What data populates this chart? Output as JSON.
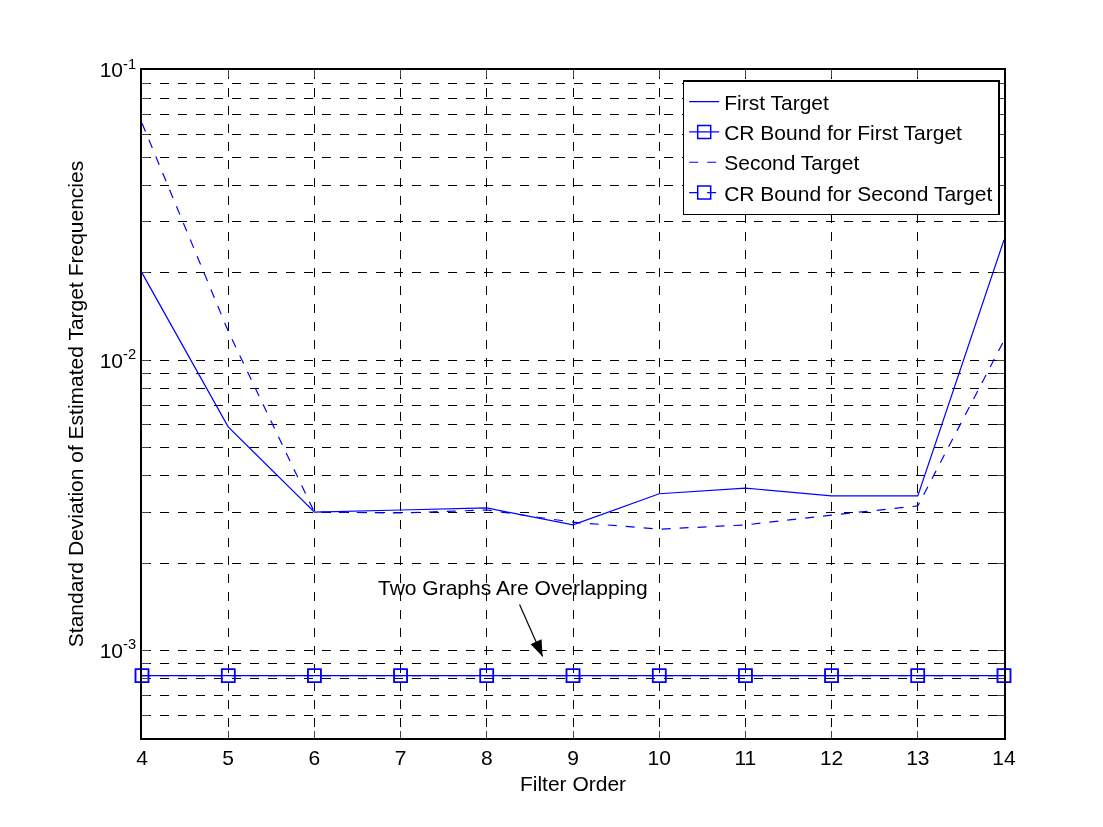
{
  "chart_data": {
    "type": "line",
    "xlabel": "Filter Order",
    "ylabel": "Standard Deviation of Estimated Target Frequencies",
    "x": [
      4,
      5,
      6,
      7,
      8,
      9,
      10,
      11,
      12,
      13,
      14
    ],
    "series": [
      {
        "name": "First Target",
        "color": "#0000ff",
        "line_style": "solid",
        "marker": "none",
        "values": [
          0.02,
          0.0059,
          0.003,
          0.00305,
          0.0031,
          0.00271,
          0.00347,
          0.00363,
          0.00341,
          0.00341,
          0.026
        ]
      },
      {
        "name": "CR Bound for First Target",
        "color": "#0000ff",
        "line_style": "solid",
        "marker": "square",
        "values": [
          0.00082,
          0.00082,
          0.00082,
          0.00082,
          0.00082,
          0.00082,
          0.00082,
          0.00082,
          0.00082,
          0.00082,
          0.00082
        ]
      },
      {
        "name": "Second Target",
        "color": "#0000ff",
        "line_style": "dashed",
        "marker": "none",
        "values": [
          0.0656,
          0.0126,
          0.003,
          0.00298,
          0.00305,
          0.00277,
          0.00262,
          0.00271,
          0.00293,
          0.00315,
          0.0117
        ]
      },
      {
        "name": "CR Bound for Second Target",
        "color": "#0000ff",
        "line_style": "dashed",
        "marker": "square",
        "values": [
          0.00082,
          0.00082,
          0.00082,
          0.00082,
          0.00082,
          0.00082,
          0.00082,
          0.00082,
          0.00082,
          0.00082,
          0.00082
        ]
      }
    ],
    "log": "y",
    "xlim": [
      4,
      14
    ],
    "xticks": [
      4,
      5,
      6,
      7,
      8,
      9,
      10,
      11,
      12,
      13,
      14
    ],
    "ylim": [
      0.0005,
      0.1
    ],
    "yticks": [
      {
        "value": 0.0005,
        "label": null
      },
      {
        "value": 0.0006,
        "label": null
      },
      {
        "value": 0.0007,
        "label": null
      },
      {
        "value": 0.0008,
        "label": null
      },
      {
        "value": 0.0009,
        "label": null
      },
      {
        "value": 0.001,
        "label": "10$^{-3}$"
      },
      {
        "value": 0.002,
        "label": null
      },
      {
        "value": 0.003,
        "label": null
      },
      {
        "value": 0.004,
        "label": null
      },
      {
        "value": 0.005,
        "label": null
      },
      {
        "value": 0.006,
        "label": null
      },
      {
        "value": 0.007,
        "label": null
      },
      {
        "value": 0.008,
        "label": null
      },
      {
        "value": 0.009,
        "label": null
      },
      {
        "value": 0.01,
        "label": "10$^{-2}$"
      },
      {
        "value": 0.02,
        "label": null
      },
      {
        "value": 0.03,
        "label": null
      },
      {
        "value": 0.04,
        "label": null
      },
      {
        "value": 0.05,
        "label": null
      },
      {
        "value": 0.06,
        "label": null
      },
      {
        "value": 0.07,
        "label": null
      },
      {
        "value": 0.08,
        "label": null
      },
      {
        "value": 0.09,
        "label": null
      },
      {
        "value": 0.1,
        "label": "10$^{-1}$"
      }
    ],
    "grid": true,
    "legend": "top right",
    "annotations": [
      "Two Graphs Are Overlapping"
    ]
  }
}
